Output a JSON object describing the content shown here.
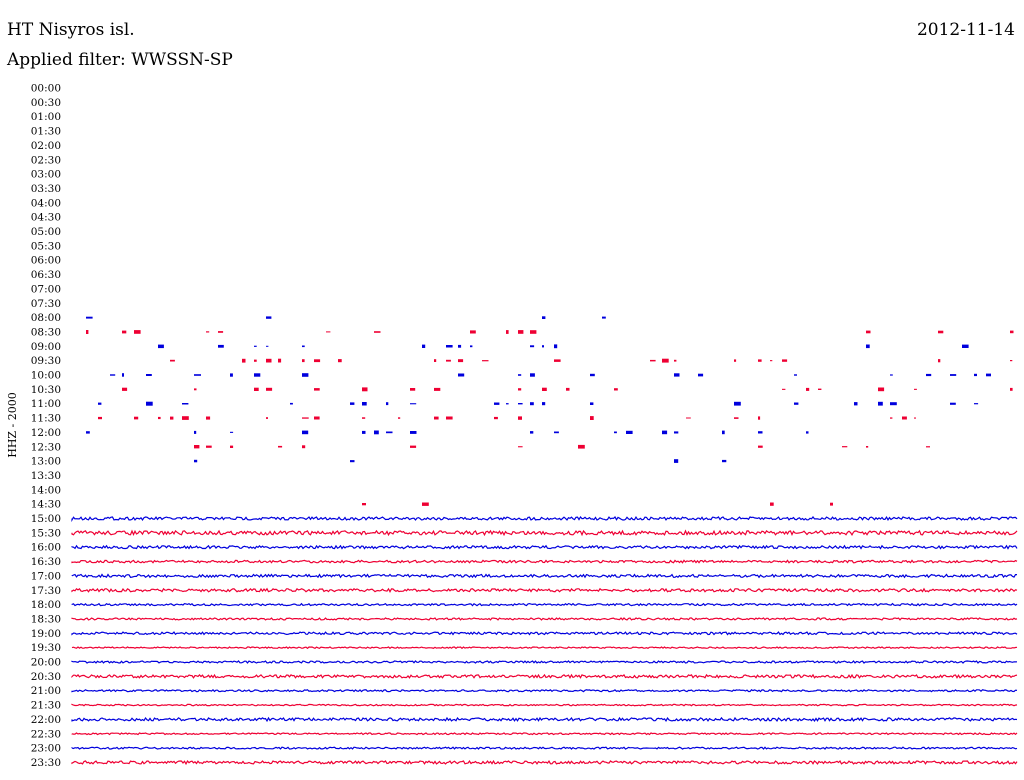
{
  "header": {
    "station": "HT Nisyros isl.",
    "date": "2012-11-14",
    "filter": "Applied filter: WWSSN-SP"
  },
  "chart_data": {
    "type": "line",
    "channel_label": "HHZ - 2000",
    "colors": {
      "even": "#0000dd",
      "odd": "#ee0033"
    },
    "rows": [
      {
        "label": "00:00",
        "trace": "none"
      },
      {
        "label": "00:30",
        "trace": "none"
      },
      {
        "label": "01:00",
        "trace": "none"
      },
      {
        "label": "01:30",
        "trace": "none"
      },
      {
        "label": "02:00",
        "trace": "none"
      },
      {
        "label": "02:30",
        "trace": "none"
      },
      {
        "label": "03:00",
        "trace": "none"
      },
      {
        "label": "03:30",
        "trace": "none"
      },
      {
        "label": "04:00",
        "trace": "none"
      },
      {
        "label": "04:30",
        "trace": "none"
      },
      {
        "label": "05:00",
        "trace": "none"
      },
      {
        "label": "05:30",
        "trace": "none"
      },
      {
        "label": "06:00",
        "trace": "none"
      },
      {
        "label": "06:30",
        "trace": "none"
      },
      {
        "label": "07:00",
        "trace": "none"
      },
      {
        "label": "07:30",
        "trace": "none"
      },
      {
        "label": "08:00",
        "trace": "sparse",
        "density": 0.06
      },
      {
        "label": "08:30",
        "trace": "sparse",
        "density": 0.17
      },
      {
        "label": "09:00",
        "trace": "sparse",
        "density": 0.2
      },
      {
        "label": "09:30",
        "trace": "sparse",
        "density": 0.26
      },
      {
        "label": "10:00",
        "trace": "sparse",
        "density": 0.28
      },
      {
        "label": "10:30",
        "trace": "sparse",
        "density": 0.26
      },
      {
        "label": "11:00",
        "trace": "sparse",
        "density": 0.28
      },
      {
        "label": "11:30",
        "trace": "sparse",
        "density": 0.24
      },
      {
        "label": "12:00",
        "trace": "sparse",
        "density": 0.17
      },
      {
        "label": "12:30",
        "trace": "sparse",
        "density": 0.13
      },
      {
        "label": "13:00",
        "trace": "sparse",
        "density": 0.07
      },
      {
        "label": "13:30",
        "trace": "sparse",
        "density": 0.01
      },
      {
        "label": "14:00",
        "trace": "none"
      },
      {
        "label": "14:30",
        "trace": "sparse",
        "density": 0.02
      },
      {
        "label": "15:00",
        "trace": "dense",
        "amp": 1.5
      },
      {
        "label": "15:30",
        "trace": "dense",
        "amp": 2.0
      },
      {
        "label": "16:00",
        "trace": "dense",
        "amp": 1.4
      },
      {
        "label": "16:30",
        "trace": "dense",
        "amp": 1.2
      },
      {
        "label": "17:00",
        "trace": "dense",
        "amp": 1.4
      },
      {
        "label": "17:30",
        "trace": "dense",
        "amp": 1.5
      },
      {
        "label": "18:00",
        "trace": "dense",
        "amp": 1.0
      },
      {
        "label": "18:30",
        "trace": "dense",
        "amp": 1.0
      },
      {
        "label": "19:00",
        "trace": "dense",
        "amp": 1.2
      },
      {
        "label": "19:30",
        "trace": "dense",
        "amp": 0.7
      },
      {
        "label": "20:00",
        "trace": "dense",
        "amp": 1.0
      },
      {
        "label": "20:30",
        "trace": "dense",
        "amp": 1.5
      },
      {
        "label": "21:00",
        "trace": "dense",
        "amp": 0.9
      },
      {
        "label": "21:30",
        "trace": "dense",
        "amp": 0.7
      },
      {
        "label": "22:00",
        "trace": "dense",
        "amp": 1.5
      },
      {
        "label": "22:30",
        "trace": "dense",
        "amp": 0.8
      },
      {
        "label": "23:00",
        "trace": "dense",
        "amp": 0.9
      },
      {
        "label": "23:30",
        "trace": "dense",
        "amp": 1.5
      }
    ]
  }
}
